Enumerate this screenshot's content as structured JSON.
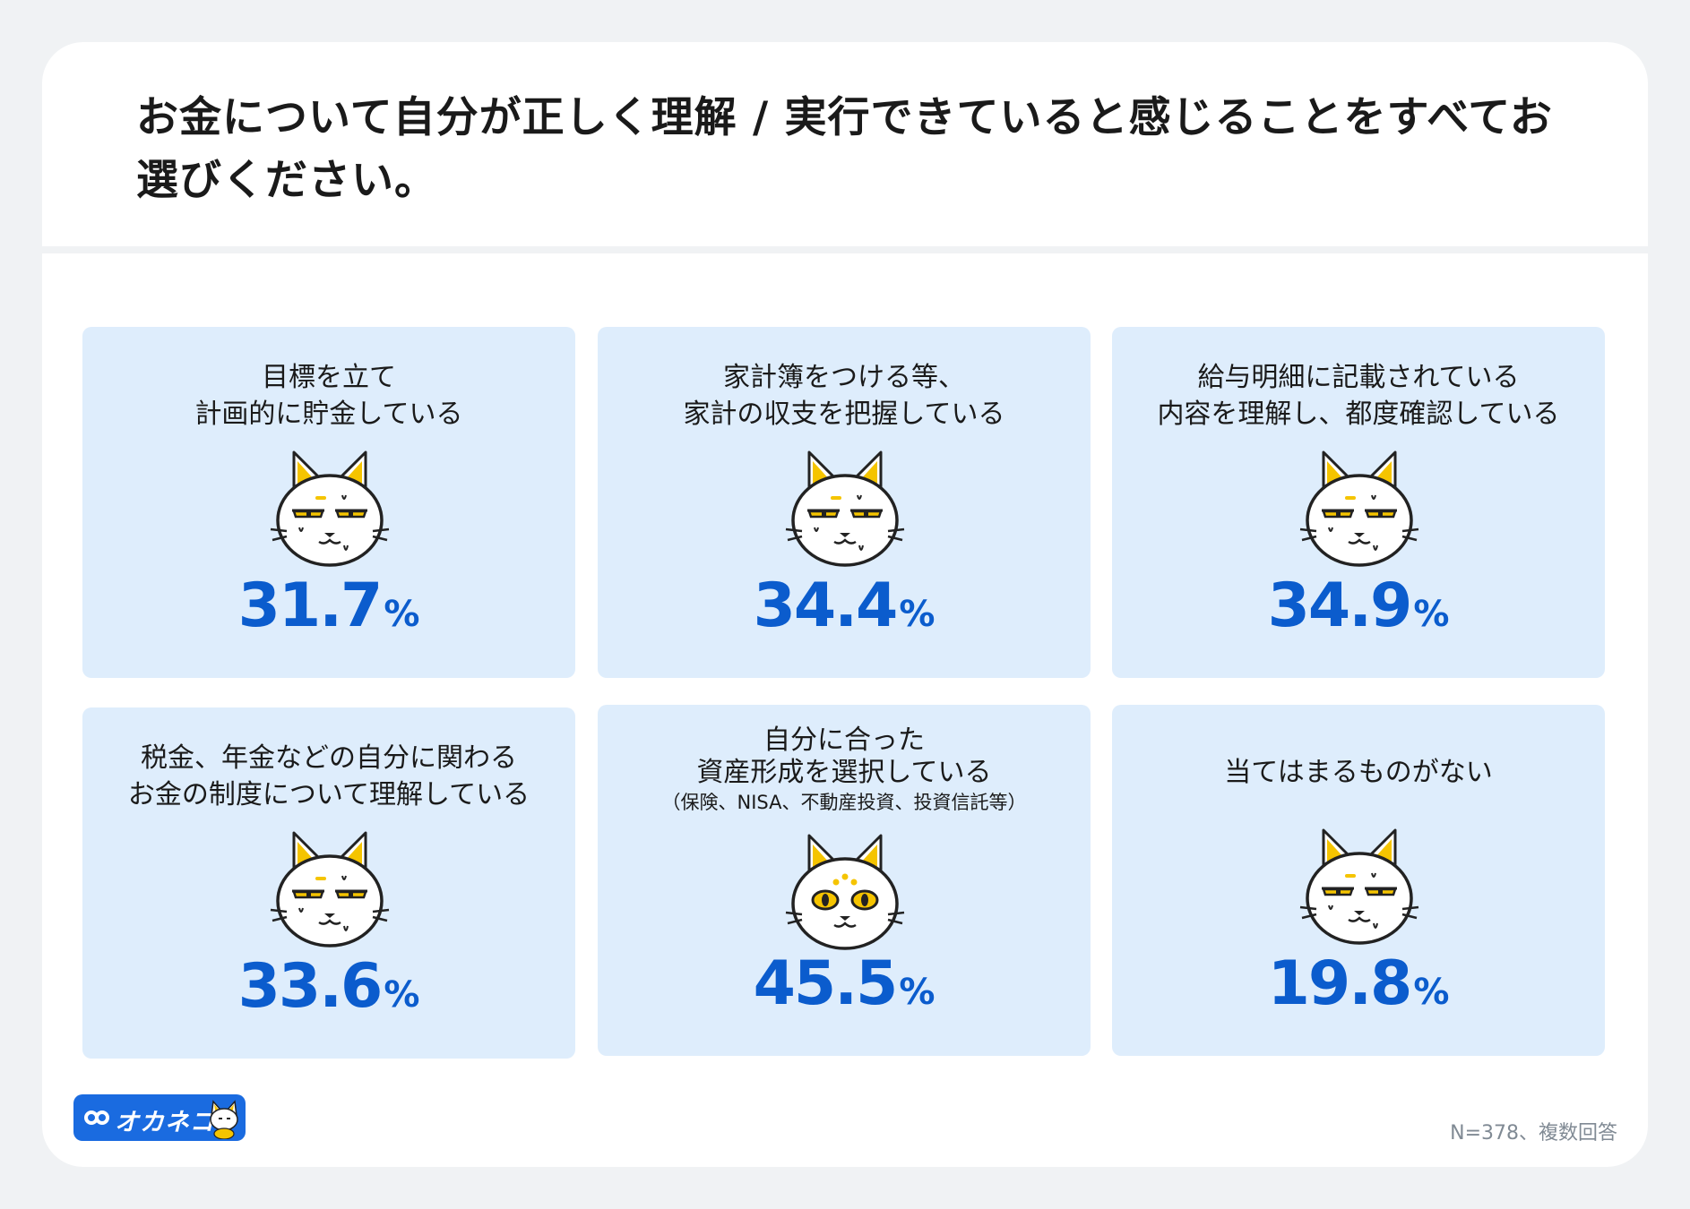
{
  "title": "お金について自分が正しく理解 / 実行できていると感じることをすべてお選びください。",
  "chart_data": {
    "type": "table",
    "categories": [
      "目標を立て\n計画的に貯金している",
      "家計簿をつける等、\n家計の収支を把握している",
      "給与明細に記載されている\n内容を理解し、都度確認している",
      "税金、年金などの自分に関わる\nお金の制度について理解している",
      "自分に合った\n資産形成を選択している",
      "当てはまるものがない"
    ],
    "values": [
      31.7,
      34.4,
      34.9,
      33.6,
      45.5,
      19.8
    ],
    "unit": "%"
  },
  "cards": [
    {
      "label": "目標を立て\n計画的に貯金している",
      "sub": "",
      "value": "31.7",
      "unit": "%"
    },
    {
      "label": "家計簿をつける等、\n家計の収支を把握している",
      "sub": "",
      "value": "34.4",
      "unit": "%"
    },
    {
      "label": "給与明細に記載されている\n内容を理解し、都度確認している",
      "sub": "",
      "value": "34.9",
      "unit": "%"
    },
    {
      "label": "税金、年金などの自分に関わる\nお金の制度について理解している",
      "sub": "",
      "value": "33.6",
      "unit": "%"
    },
    {
      "label": "自分に合った\n資産形成を選択している",
      "sub": "（保険、NISA、不動産投資、投資信託等）",
      "value": "45.5",
      "unit": "%"
    },
    {
      "label": "当てはまるものがない",
      "sub": "",
      "value": "19.8",
      "unit": "%"
    }
  ],
  "logo": {
    "text": "オカネコ"
  },
  "footnote": "N=378、複数回答",
  "colors": {
    "accent": "#0b5ccd",
    "card_bg": "#deedfc",
    "logo_bg": "#1a6be0",
    "cat_ear": "#f5c400"
  }
}
